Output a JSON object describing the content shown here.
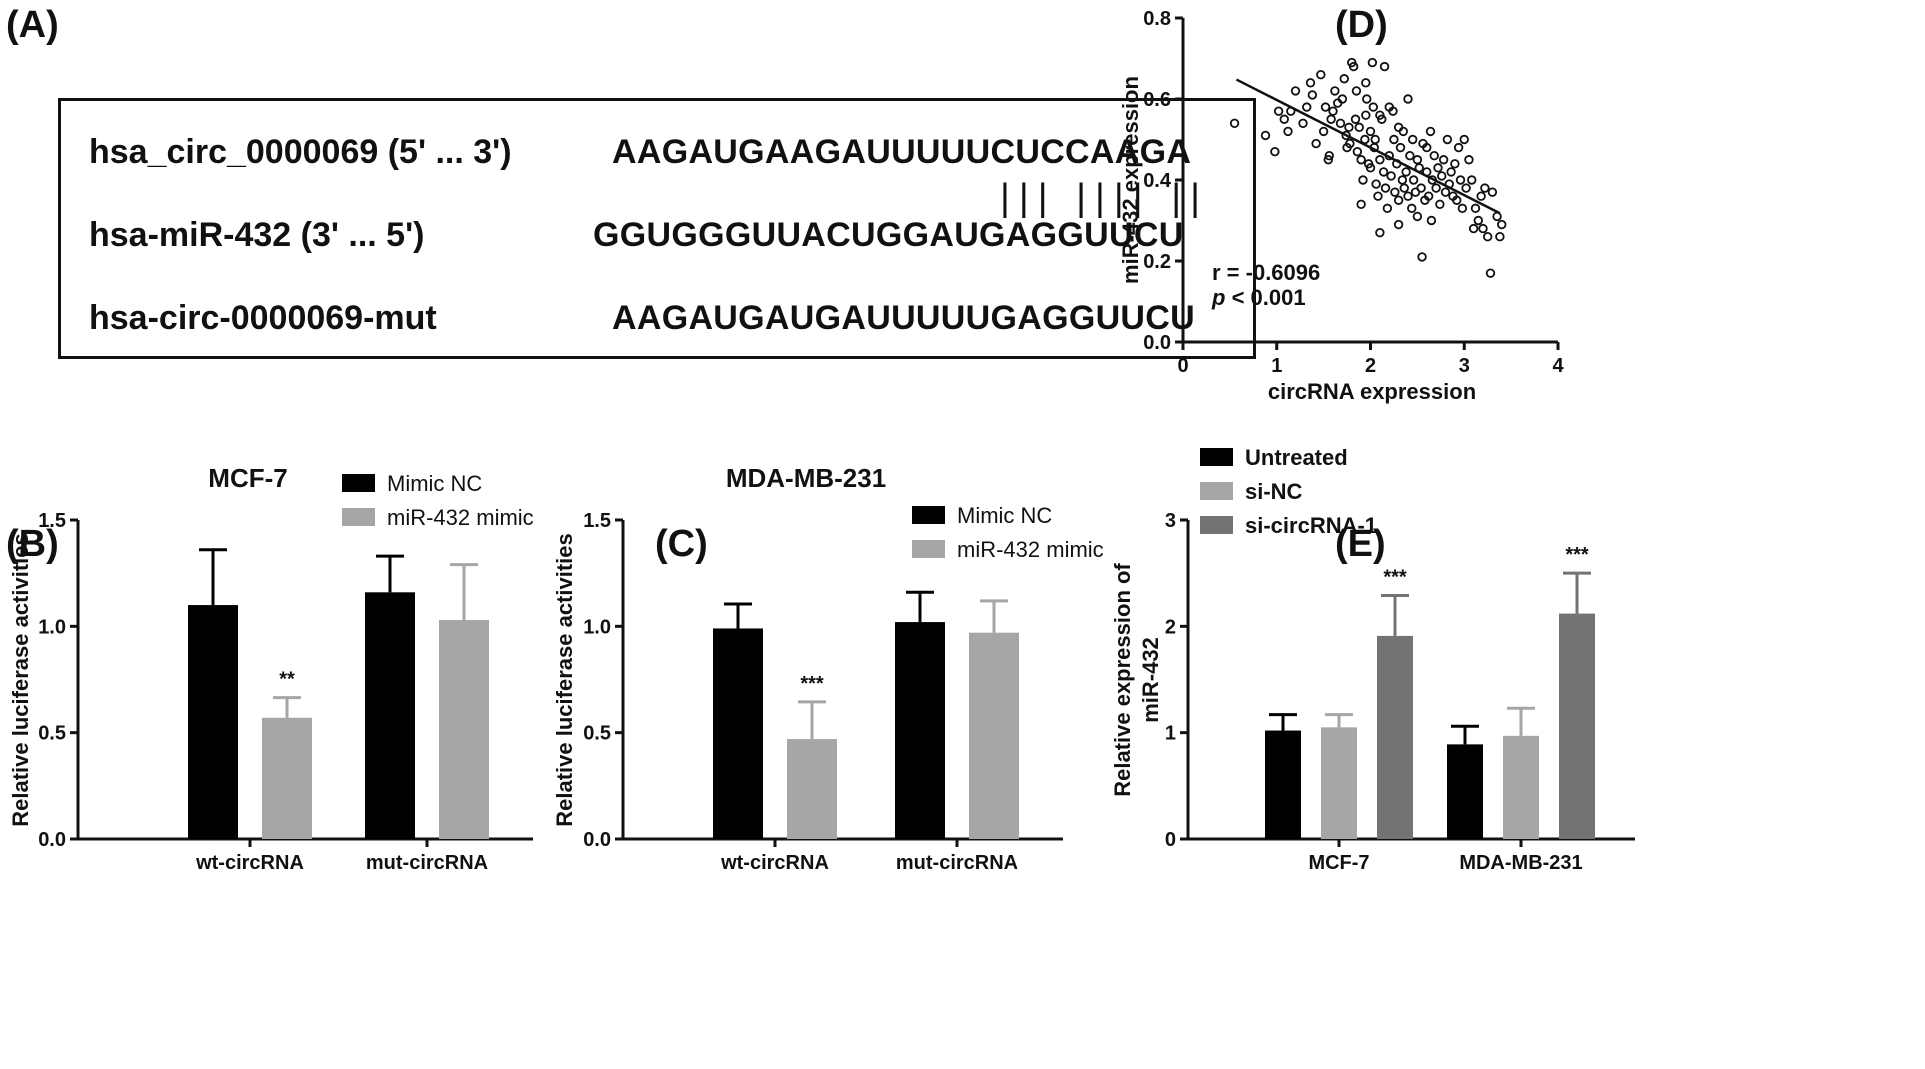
{
  "panel_labels": {
    "A": "(A)",
    "B": "(B)",
    "C": "(C)",
    "D": "(D)",
    "E": "(E)"
  },
  "sequences": {
    "rows": [
      {
        "name": "hsa_circ_0000069 (5' ... 3')",
        "sequence": "AAGAUGAAGAUUUUUCUCCAAGA"
      },
      {
        "name": "hsa-miR-432 (3' ... 5')",
        "sequence": "GGUGGGUUACUGGAUGAGGUUCU"
      },
      {
        "name": "hsa-circ-0000069-mut",
        "sequence": "AAGAUGAUGAUUUUUGAGGUUCU"
      }
    ],
    "pairing_marks": "||| |||| ||"
  },
  "chart_data": [
    {
      "panel": "B",
      "type": "bar",
      "title": "MCF-7",
      "ylabel": "Relative luciferase activities",
      "categories": [
        "wt-circRNA",
        "mut-circRNA"
      ],
      "series": [
        {
          "name": "Mimic NC",
          "color": "#000000",
          "values": [
            1.1,
            1.16
          ],
          "errors": [
            0.26,
            0.17
          ]
        },
        {
          "name": "miR-432 mimic",
          "color": "#a6a6a6",
          "values": [
            0.57,
            1.03
          ],
          "errors": [
            0.095,
            0.26
          ]
        }
      ],
      "annotations": [
        {
          "category": 0,
          "series": 1,
          "text": "**"
        }
      ],
      "ylim": [
        0,
        1.5
      ],
      "yticks": [
        "0.0",
        "0.5",
        "1.0",
        "1.5"
      ]
    },
    {
      "panel": "C",
      "type": "bar",
      "title": "MDA-MB-231",
      "ylabel": "Relative luciferase activities",
      "categories": [
        "wt-circRNA",
        "mut-circRNA"
      ],
      "series": [
        {
          "name": "Mimic NC",
          "color": "#000000",
          "values": [
            0.99,
            1.02
          ],
          "errors": [
            0.115,
            0.14
          ]
        },
        {
          "name": "miR-432 mimic",
          "color": "#a6a6a6",
          "values": [
            0.47,
            0.97
          ],
          "errors": [
            0.175,
            0.15
          ]
        }
      ],
      "annotations": [
        {
          "category": 0,
          "series": 1,
          "text": "***"
        }
      ],
      "ylim": [
        0,
        1.5
      ],
      "yticks": [
        "0.0",
        "0.5",
        "1.0",
        "1.5"
      ]
    },
    {
      "panel": "D",
      "type": "scatter",
      "xlabel": "circRNA expression",
      "ylabel": "miR-432 expression",
      "xlim": [
        0,
        4
      ],
      "ylim": [
        0,
        0.8
      ],
      "xticks": [
        "0",
        "1",
        "2",
        "3",
        "4"
      ],
      "yticks": [
        "0.0",
        "0.2",
        "0.4",
        "0.6",
        "0.8"
      ],
      "annotation_r": "r = -0.6096",
      "annotation_p_symbol": "p",
      "annotation_p_rest": " < 0.001",
      "regression": {
        "x": [
          0.57,
          3.38
        ],
        "y": [
          0.648,
          0.318
        ]
      },
      "points": [
        [
          0.55,
          0.54
        ],
        [
          0.88,
          0.51
        ],
        [
          0.98,
          0.47
        ],
        [
          1.02,
          0.57
        ],
        [
          1.08,
          0.55
        ],
        [
          1.12,
          0.52
        ],
        [
          1.15,
          0.57
        ],
        [
          1.2,
          0.62
        ],
        [
          1.28,
          0.54
        ],
        [
          1.32,
          0.58
        ],
        [
          1.36,
          0.64
        ],
        [
          1.38,
          0.61
        ],
        [
          1.42,
          0.49
        ],
        [
          1.47,
          0.66
        ],
        [
          1.5,
          0.52
        ],
        [
          1.52,
          0.58
        ],
        [
          1.55,
          0.45
        ],
        [
          1.56,
          0.46
        ],
        [
          1.58,
          0.55
        ],
        [
          1.6,
          0.57
        ],
        [
          1.62,
          0.62
        ],
        [
          1.65,
          0.59
        ],
        [
          1.68,
          0.54
        ],
        [
          1.7,
          0.6
        ],
        [
          1.72,
          0.65
        ],
        [
          1.74,
          0.51
        ],
        [
          1.75,
          0.48
        ],
        [
          1.77,
          0.53
        ],
        [
          1.78,
          0.49
        ],
        [
          1.8,
          0.69
        ],
        [
          1.82,
          0.68
        ],
        [
          1.84,
          0.55
        ],
        [
          1.85,
          0.62
        ],
        [
          1.86,
          0.47
        ],
        [
          1.88,
          0.53
        ],
        [
          1.9,
          0.45
        ],
        [
          1.9,
          0.34
        ],
        [
          1.92,
          0.4
        ],
        [
          1.94,
          0.5
        ],
        [
          1.95,
          0.56
        ],
        [
          1.96,
          0.6
        ],
        [
          1.98,
          0.44
        ],
        [
          2.0,
          0.52
        ],
        [
          2.0,
          0.43
        ],
        [
          2.02,
          0.69
        ],
        [
          2.03,
          0.58
        ],
        [
          2.04,
          0.48
        ],
        [
          2.05,
          0.5
        ],
        [
          2.06,
          0.39
        ],
        [
          2.08,
          0.36
        ],
        [
          2.1,
          0.45
        ],
        [
          2.1,
          0.27
        ],
        [
          2.12,
          0.55
        ],
        [
          2.14,
          0.42
        ],
        [
          2.15,
          0.68
        ],
        [
          2.16,
          0.38
        ],
        [
          2.18,
          0.33
        ],
        [
          2.2,
          0.46
        ],
        [
          2.22,
          0.41
        ],
        [
          2.24,
          0.57
        ],
        [
          2.25,
          0.5
        ],
        [
          2.26,
          0.37
        ],
        [
          2.28,
          0.44
        ],
        [
          2.3,
          0.35
        ],
        [
          2.3,
          0.29
        ],
        [
          2.32,
          0.48
        ],
        [
          2.34,
          0.4
        ],
        [
          2.35,
          0.52
        ],
        [
          2.36,
          0.38
        ],
        [
          2.38,
          0.42
        ],
        [
          2.4,
          0.36
        ],
        [
          2.42,
          0.46
        ],
        [
          2.44,
          0.33
        ],
        [
          2.45,
          0.5
        ],
        [
          2.46,
          0.4
        ],
        [
          2.48,
          0.37
        ],
        [
          2.5,
          0.45
        ],
        [
          2.5,
          0.31
        ],
        [
          2.52,
          0.43
        ],
        [
          2.54,
          0.38
        ],
        [
          2.55,
          0.21
        ],
        [
          2.56,
          0.49
        ],
        [
          2.58,
          0.35
        ],
        [
          2.6,
          0.42
        ],
        [
          2.62,
          0.36
        ],
        [
          2.64,
          0.52
        ],
        [
          2.65,
          0.3
        ],
        [
          2.66,
          0.4
        ],
        [
          2.68,
          0.46
        ],
        [
          2.7,
          0.38
        ],
        [
          2.72,
          0.43
        ],
        [
          2.74,
          0.34
        ],
        [
          2.76,
          0.41
        ],
        [
          2.78,
          0.45
        ],
        [
          2.8,
          0.37
        ],
        [
          2.82,
          0.5
        ],
        [
          2.84,
          0.39
        ],
        [
          2.86,
          0.42
        ],
        [
          2.88,
          0.36
        ],
        [
          2.9,
          0.44
        ],
        [
          2.92,
          0.35
        ],
        [
          2.94,
          0.48
        ],
        [
          2.96,
          0.4
        ],
        [
          2.98,
          0.33
        ],
        [
          3.0,
          0.5
        ],
        [
          3.02,
          0.38
        ],
        [
          3.05,
          0.45
        ],
        [
          3.08,
          0.4
        ],
        [
          3.1,
          0.28
        ],
        [
          3.12,
          0.33
        ],
        [
          3.15,
          0.3
        ],
        [
          3.18,
          0.36
        ],
        [
          3.2,
          0.28
        ],
        [
          3.22,
          0.38
        ],
        [
          3.25,
          0.26
        ],
        [
          3.28,
          0.17
        ],
        [
          3.3,
          0.37
        ],
        [
          3.35,
          0.31
        ],
        [
          3.38,
          0.26
        ],
        [
          3.4,
          0.29
        ],
        [
          2.2,
          0.58
        ],
        [
          2.4,
          0.6
        ],
        [
          2.1,
          0.56
        ],
        [
          1.95,
          0.64
        ],
        [
          2.3,
          0.53
        ],
        [
          2.6,
          0.48
        ]
      ]
    },
    {
      "panel": "E",
      "type": "bar",
      "ylabel_line1": "Relative expression of",
      "ylabel_line2": "miR-432",
      "categories": [
        "MCF-7",
        "MDA-MB-231"
      ],
      "series": [
        {
          "name": "Untreated",
          "color": "#000000",
          "values": [
            1.02,
            0.89
          ],
          "errors": [
            0.15,
            0.17
          ]
        },
        {
          "name": "si-NC",
          "color": "#a6a6a6",
          "values": [
            1.05,
            0.97
          ],
          "errors": [
            0.12,
            0.26
          ]
        },
        {
          "name": "si-circRNA-1",
          "color": "#737373",
          "values": [
            1.91,
            2.12
          ],
          "errors": [
            0.38,
            0.38
          ]
        }
      ],
      "annotations": [
        {
          "category": 0,
          "series": 2,
          "text": "***"
        },
        {
          "category": 1,
          "series": 2,
          "text": "***"
        }
      ],
      "ylim": [
        0,
        3
      ],
      "yticks": [
        "0",
        "1",
        "2",
        "3"
      ]
    }
  ]
}
